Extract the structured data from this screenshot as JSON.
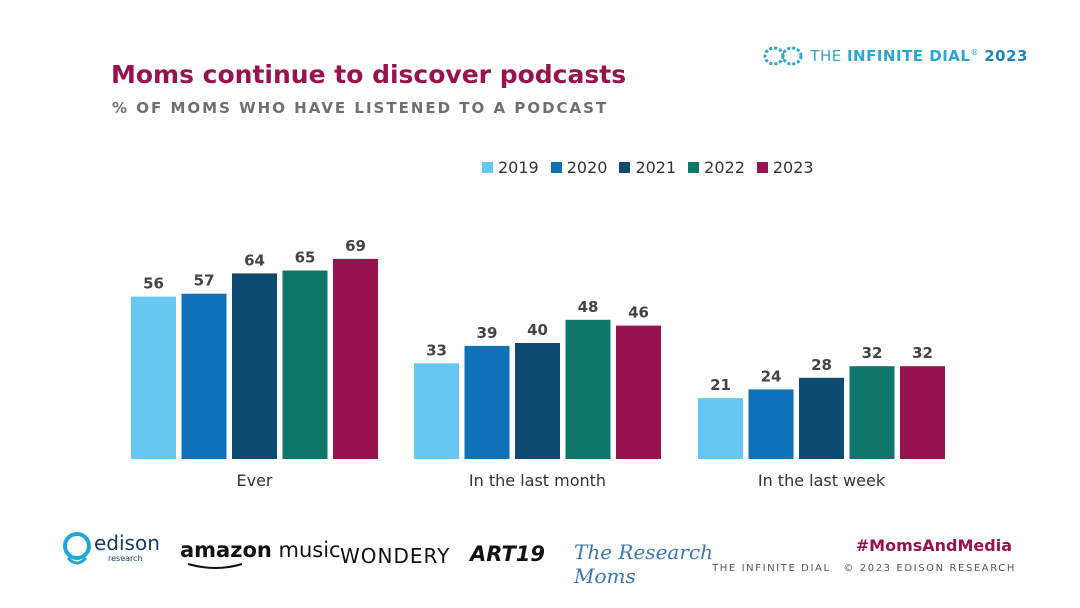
{
  "brand": {
    "prefix": "THE ",
    "strong": "INFINITE DIAL",
    "reg": "®",
    "year": "2023"
  },
  "header": {
    "title": "Moms continue to discover podcasts",
    "subtitle": "% OF MOMS WHO HAVE LISTENED TO A PODCAST"
  },
  "colors": {
    "y2019": "#67c7f3",
    "y2020": "#0f72b8",
    "y2021": "#0d4b73",
    "y2022": "#0d7669",
    "y2023": "#98124f",
    "title": "#98124f"
  },
  "chart_data": {
    "type": "bar",
    "title": "Moms continue to discover podcasts",
    "subtitle": "% OF MOMS WHO HAVE LISTENED TO A PODCAST",
    "xlabel": "",
    "ylabel": "",
    "ylim": [
      0,
      100
    ],
    "grid": false,
    "legend_position": "top",
    "categories": [
      "Ever",
      "In the last month",
      "In the last week"
    ],
    "series": [
      {
        "name": "2019",
        "values": [
          56,
          33,
          21
        ]
      },
      {
        "name": "2020",
        "values": [
          57,
          39,
          24
        ]
      },
      {
        "name": "2021",
        "values": [
          64,
          40,
          28
        ]
      },
      {
        "name": "2022",
        "values": [
          65,
          48,
          32
        ]
      },
      {
        "name": "2023",
        "values": [
          69,
          46,
          32
        ]
      }
    ]
  },
  "logos": {
    "edison": "edison",
    "edison_sub": "research",
    "amazon_word": "amazon",
    "amazon_music": " music",
    "wondery": "WONDERY",
    "art19": "ART19",
    "researchmoms": "The Research Moms"
  },
  "footer": {
    "hashtag": "#MomsAndMedia",
    "source": "THE INFINITE DIAL",
    "copyright": "© 2023 EDISON RESEARCH"
  }
}
